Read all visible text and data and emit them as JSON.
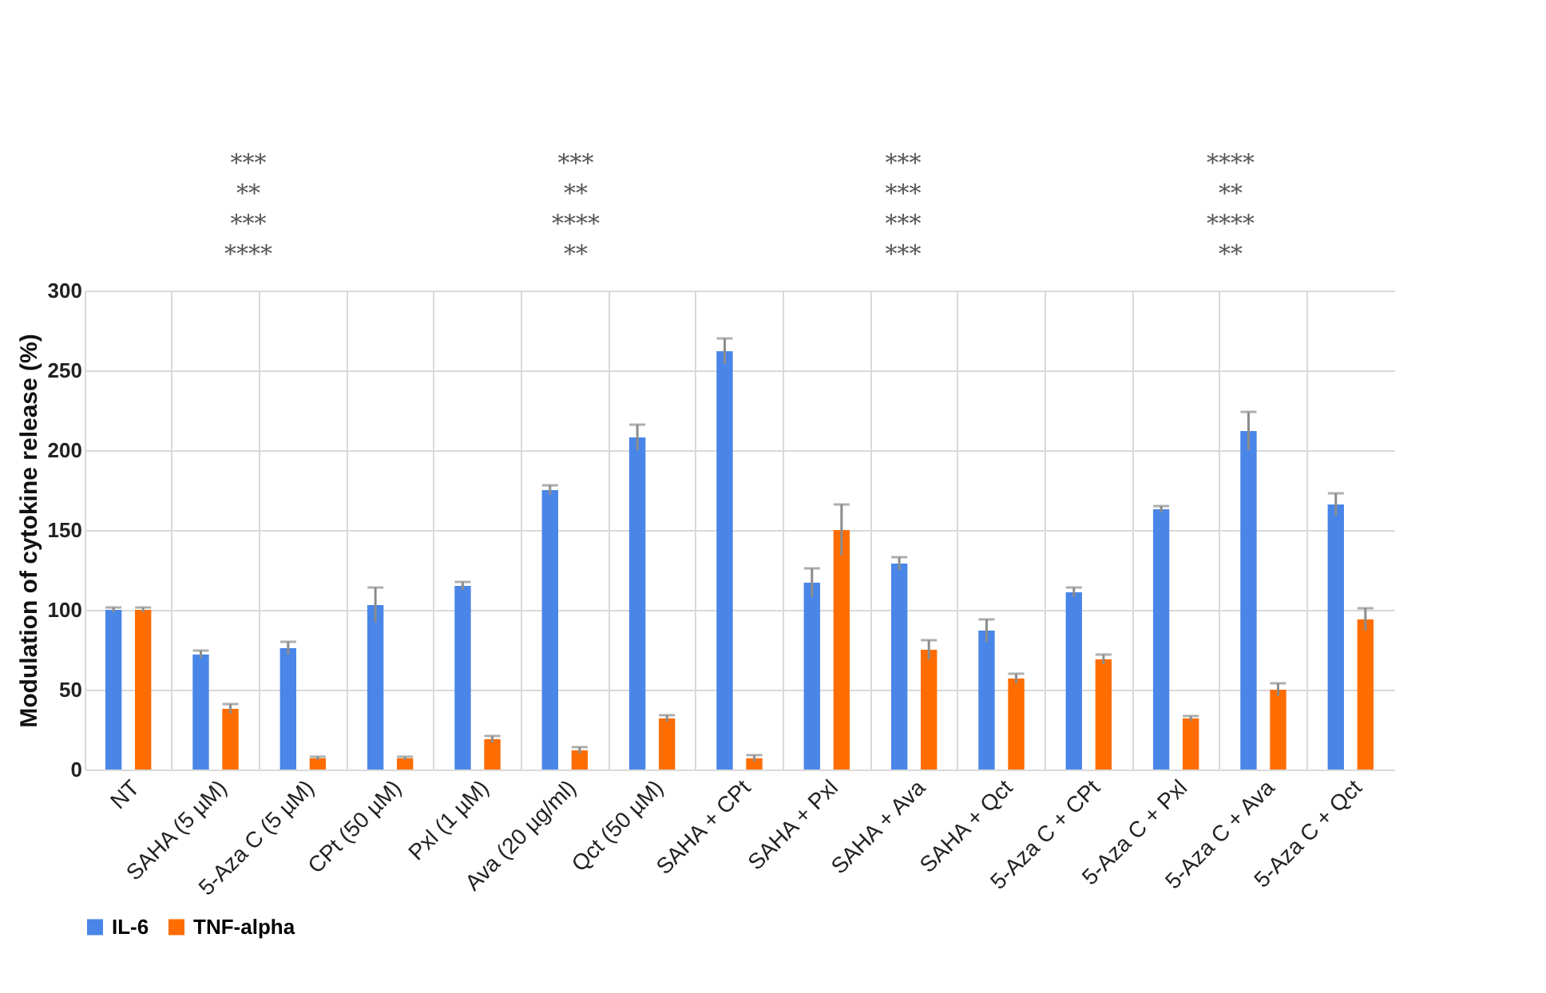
{
  "chart_data": {
    "type": "bar",
    "ylabel": "Modulation of cytokine release (%)",
    "categories": [
      "NT",
      "SAHA (5 µM)",
      "5-Aza C (5 µM)",
      "CPt (50 µM)",
      "Pxl (1 µM)",
      "Ava (20 µg/ml)",
      "Qct (50 µM)",
      "SAHA + CPt",
      "SAHA + Pxl",
      "SAHA + Ava",
      "SAHA + Qct",
      "5-Aza C + CPt",
      "5-Aza C + Pxl",
      "5-Aza C + Ava",
      "5-Aza C + Qct"
    ],
    "series": [
      {
        "name": "IL-6",
        "color": "#4a86e8",
        "values": [
          100,
          72,
          76,
          103,
          115,
          175,
          208,
          262,
          117,
          129,
          87,
          111,
          163,
          212,
          166
        ],
        "errors": [
          1.5,
          2.5,
          4,
          11,
          2.5,
          3,
          8,
          8,
          9,
          4,
          7,
          3,
          2,
          12,
          7
        ]
      },
      {
        "name": "TNF-alpha",
        "color": "#ff6d01",
        "values": [
          100,
          38,
          7,
          7,
          19,
          12,
          32,
          7,
          150,
          75,
          57,
          69,
          32,
          50,
          94
        ],
        "errors": [
          1.5,
          3,
          1,
          1,
          2,
          2,
          2,
          2,
          16,
          6,
          3,
          3,
          1.5,
          4,
          7
        ]
      }
    ],
    "ylim": [
      0,
      300
    ],
    "yticks": [
      0,
      50,
      100,
      150,
      200,
      250,
      300
    ],
    "grid": true,
    "legend": "bottom",
    "annotations": [
      "***",
      "***",
      "***",
      "****",
      "**",
      "**",
      "***",
      "**",
      "***",
      "****",
      "***",
      "****",
      "****",
      "**",
      "***",
      "**"
    ]
  }
}
